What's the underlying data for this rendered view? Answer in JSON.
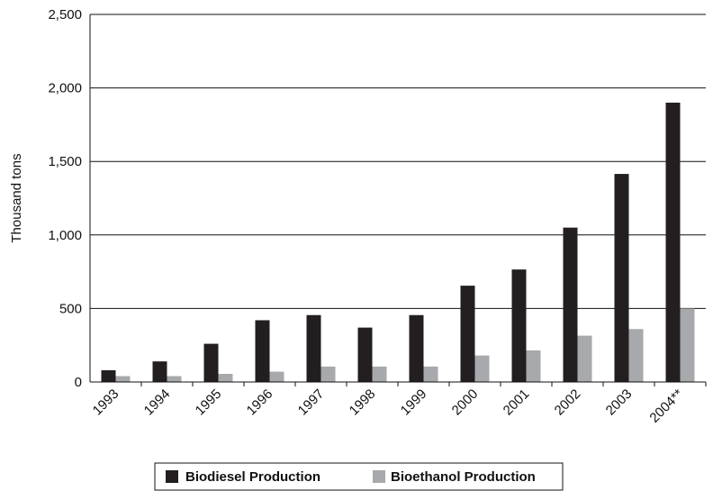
{
  "chart_data": {
    "type": "bar",
    "categories": [
      "1993",
      "1994",
      "1995",
      "1996",
      "1997",
      "1998",
      "1999",
      "2000",
      "2001",
      "2002",
      "2003",
      "2004**"
    ],
    "series": [
      {
        "name": "Biodiesel Production",
        "color": "#231f20",
        "values": [
          80,
          140,
          260,
          420,
          455,
          370,
          455,
          655,
          765,
          1050,
          1415,
          1900
        ]
      },
      {
        "name": "Bioethanol Production",
        "color": "#a7a9ac",
        "values": [
          40,
          40,
          55,
          70,
          105,
          105,
          105,
          180,
          215,
          315,
          360,
          500
        ]
      }
    ],
    "ylabel": "Thousand tons",
    "ylim": [
      0,
      2500
    ],
    "yticks": [
      0,
      500,
      1000,
      1500,
      2000,
      2500
    ],
    "ytick_labels": [
      "0",
      "500",
      "1,000",
      "1,500",
      "2,000",
      "2,500"
    ],
    "grid": true,
    "legend_position": "bottom"
  }
}
